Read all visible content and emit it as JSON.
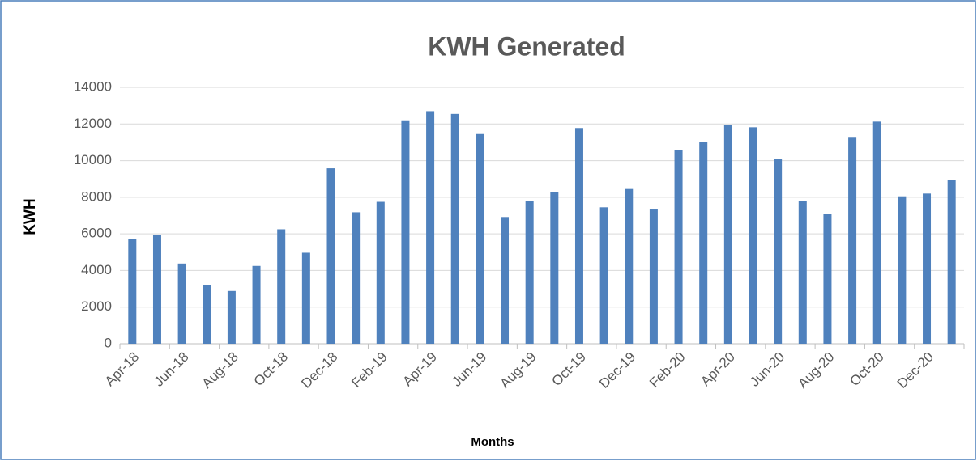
{
  "chart_data": {
    "type": "bar",
    "title": "KWH Generated",
    "x_label": "Months",
    "y_label": "KWH",
    "categories": [
      "Apr-18",
      null,
      "Jun-18",
      null,
      "Aug-18",
      null,
      "Oct-18",
      null,
      "Dec-18",
      null,
      "Feb-19",
      null,
      "Apr-19",
      null,
      "Jun-19",
      null,
      "Aug-19",
      null,
      "Oct-19",
      null,
      "Dec-19",
      null,
      "Feb-20",
      null,
      "Apr-20",
      null,
      "Jun-20",
      null,
      "Aug-20",
      null,
      "Oct-20",
      null,
      "Dec-20",
      null
    ],
    "values": [
      5700,
      5950,
      4380,
      3200,
      2880,
      4250,
      6250,
      4970,
      9580,
      7180,
      7750,
      12200,
      12700,
      12550,
      11450,
      6920,
      7800,
      8280,
      11780,
      7450,
      8450,
      7330,
      10580,
      11000,
      11950,
      11820,
      10080,
      7780,
      7100,
      11250,
      12130,
      8050,
      8200,
      8930
    ],
    "color": "#4f81bd",
    "ylim": [
      0,
      14000
    ],
    "yticks": [
      0,
      2000,
      4000,
      6000,
      8000,
      10000,
      12000,
      14000
    ],
    "grid": true
  }
}
